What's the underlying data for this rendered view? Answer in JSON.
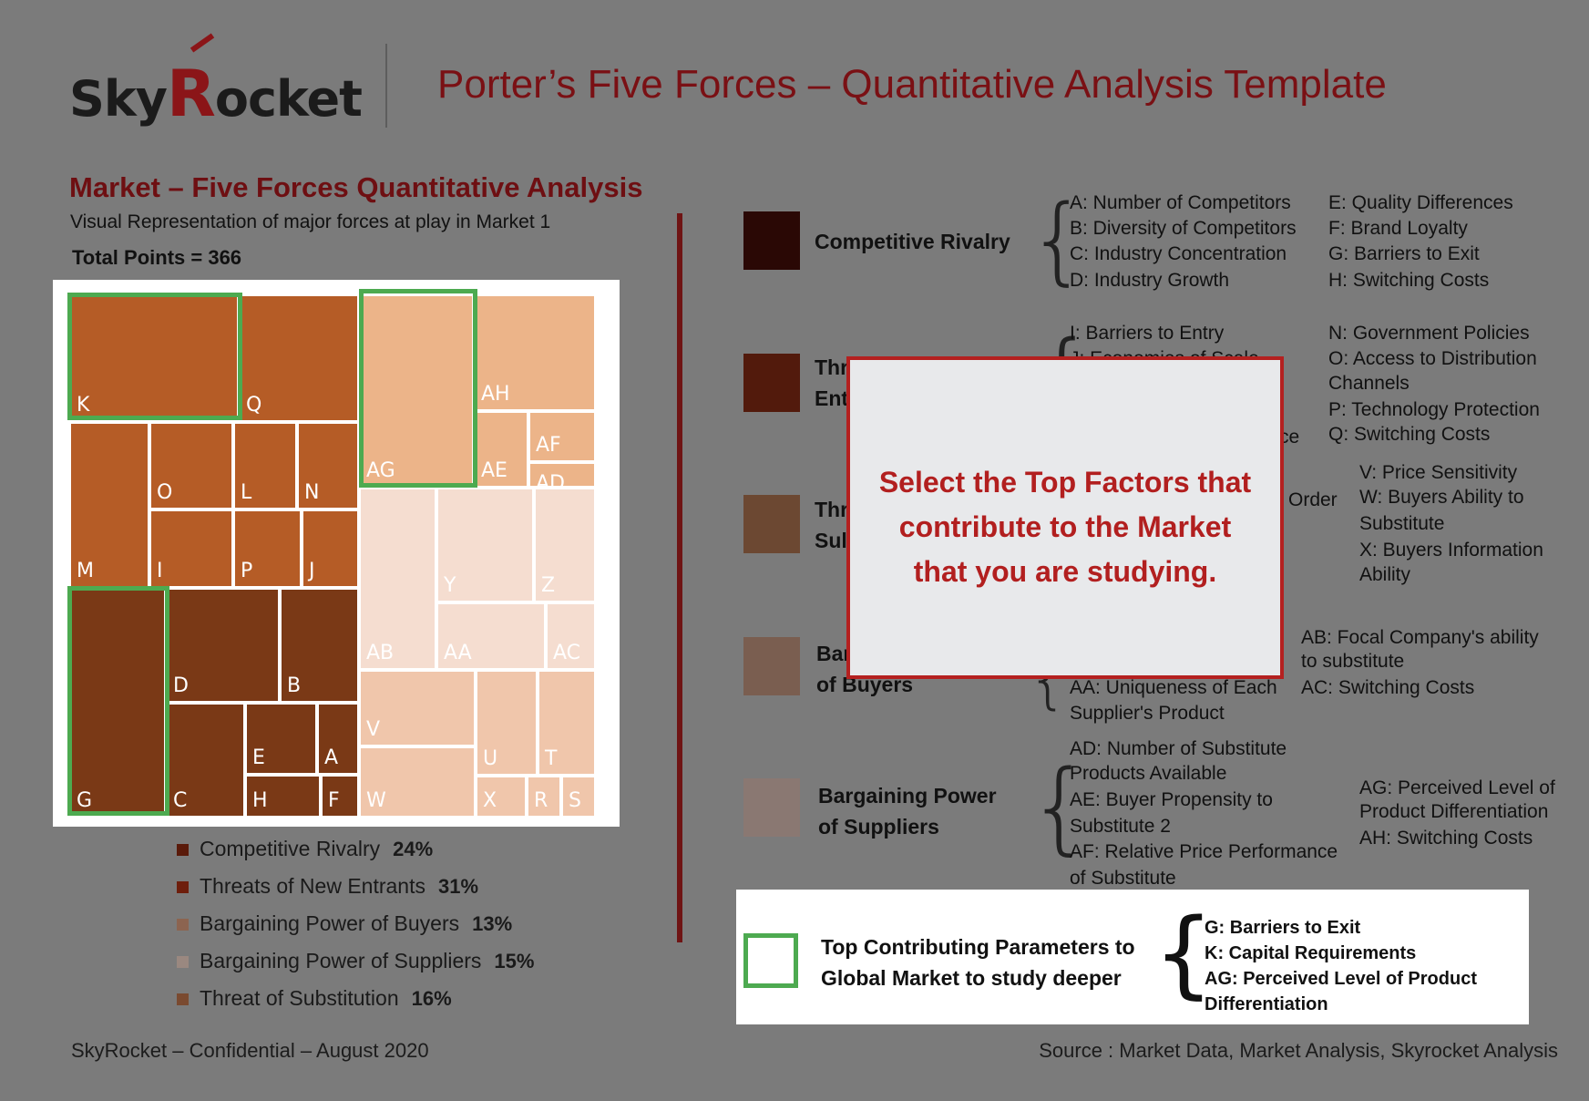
{
  "header": {
    "logo_text_1": "Sky",
    "logo_text_r": "R",
    "logo_text_2": "ocket",
    "title": "Porter’s Five Forces – Quantitative Analysis Template"
  },
  "section": {
    "title": "Market – Five Forces Quantitative Analysis",
    "subtitle": "Visual Representation of major forces at play in Market 1",
    "total": "Total Points = 366"
  },
  "colors": {
    "competitive_rivalry": "#7a3916",
    "new_entrants": "#b55c26",
    "suppliers_tile": "#ecb489",
    "suppliers_light": "#f5ddd0",
    "highlight": "#4daa50"
  },
  "treemap": {
    "cells": [
      {
        "label": "K"
      },
      {
        "label": "Q"
      },
      {
        "label": "M"
      },
      {
        "label": "O"
      },
      {
        "label": "L"
      },
      {
        "label": "N"
      },
      {
        "label": "I"
      },
      {
        "label": "P"
      },
      {
        "label": "J"
      },
      {
        "label": "G"
      },
      {
        "label": "D"
      },
      {
        "label": "B"
      },
      {
        "label": "C"
      },
      {
        "label": "E"
      },
      {
        "label": "A"
      },
      {
        "label": "H"
      },
      {
        "label": "F"
      },
      {
        "label": "AG"
      },
      {
        "label": "AH"
      },
      {
        "label": "AE"
      },
      {
        "label": "AF"
      },
      {
        "label": "AD"
      },
      {
        "label": "AB"
      },
      {
        "label": "Y"
      },
      {
        "label": "Z"
      },
      {
        "label": "AA"
      },
      {
        "label": "AC"
      },
      {
        "label": "V"
      },
      {
        "label": "W"
      },
      {
        "label": "U"
      },
      {
        "label": "T"
      },
      {
        "label": "X"
      },
      {
        "label": "R"
      },
      {
        "label": "S"
      }
    ]
  },
  "legend": [
    {
      "label": "Competitive Rivalry",
      "pct": "24%",
      "color": "#5a1a0a"
    },
    {
      "label": "Threats of New Entrants",
      "pct": "31%",
      "color": "#6e1e0c"
    },
    {
      "label": "Bargaining Power of Buyers",
      "pct": "13%",
      "color": "#8c6450"
    },
    {
      "label": "Bargaining Power of Suppliers",
      "pct": "15%",
      "color": "#9a8880"
    },
    {
      "label": "Threat of Substitution",
      "pct": "16%",
      "color": "#7a4a30"
    }
  ],
  "forces": [
    {
      "name_line1": "Competitive Rivalry",
      "name_line2": "",
      "color": "#2a0805",
      "col1": [
        "A: Number of Competitors",
        "B: Diversity of Competitors",
        "C: Industry Concentration",
        "D: Industry Growth"
      ],
      "col2": [
        "E: Quality Differences",
        "F: Brand Loyalty",
        "G: Barriers to Exit",
        "H: Switching Costs"
      ]
    },
    {
      "name_line1": "Thr",
      "name_line2": "Ent",
      "color": "#521a0c",
      "col1": [
        "I: Barriers to Entry"
      ],
      "col1_partial": "J: Economies of Scale",
      "col1_tail": "ce",
      "col2": [
        "N: Government Policies",
        "O: Access to Distribution",
        "Channels",
        "P: Technology Protection",
        "Q: Switching Costs"
      ]
    },
    {
      "name_line1": "Thr",
      "name_line2": "Sul",
      "color": "#6c4832",
      "col1_tail": "Order",
      "col2": [
        "V: Price Sensitivity",
        "W: Buyers Ability to",
        "Substitute",
        "X: Buyers Information",
        "Ability"
      ]
    },
    {
      "name_line1": "Bar",
      "name_line2": "of Buyers",
      "color": "#7a5e50",
      "col1": [
        "AA: Uniqueness of Each",
        "Supplier's Product"
      ],
      "col2": [
        "AB: Focal Company's ability",
        "to substitute",
        "AC: Switching Costs"
      ]
    },
    {
      "name_line1": "Bargaining Power",
      "name_line2": "of Suppliers",
      "color": "#8a7872",
      "col1": [
        "AD: Number of Substitute",
        "Products Available",
        "AE: Buyer Propensity to",
        "Substitute 2",
        "AF: Relative Price Performance",
        "of Substitute"
      ],
      "col2": [
        "AG: Perceived Level of",
        "Product Differentiation",
        "AH: Switching Costs"
      ]
    }
  ],
  "popup": {
    "line1": "Select the Top Factors that",
    "line2": "contribute to the Market",
    "line3": "that you are studying."
  },
  "top_params": {
    "label_line1": "Top Contributing Parameters to",
    "label_line2": "Global Market to study deeper",
    "items": [
      "G: Barriers to Exit",
      "K: Capital Requirements",
      "AG: Perceived Level of Product",
      "Differentiation"
    ]
  },
  "footer": {
    "left": "SkyRocket – Confidential – August 2020",
    "right": "Source : Market Data, Market Analysis, Skyrocket Analysis"
  }
}
